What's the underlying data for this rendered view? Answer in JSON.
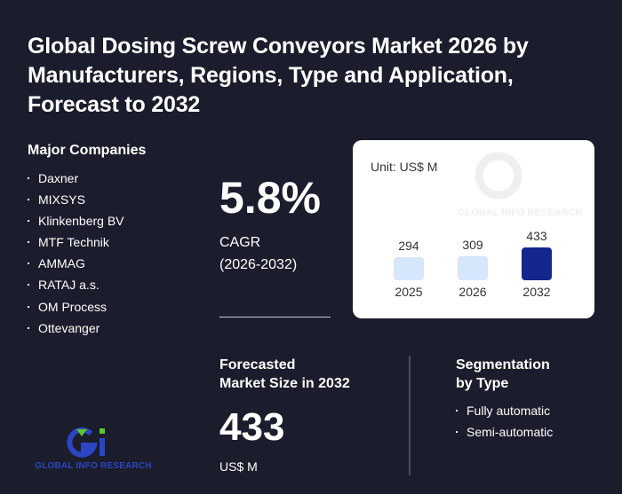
{
  "title": "Global Dosing Screw Conveyors Market 2026 by Manufacturers, Regions, Type and Application, Forecast to 2032",
  "companies": {
    "heading": "Major Companies",
    "items": [
      "Daxner",
      "MIXSYS",
      "Klinkenberg BV",
      "MTF Technik",
      "AMMAG",
      "RATAJ a.s.",
      "OM Process",
      "Ottevanger"
    ]
  },
  "cagr": {
    "value": "5.8%",
    "label": "CAGR",
    "period": "(2026-2032)"
  },
  "forecast": {
    "heading_line1": "Forecasted",
    "heading_line2": "Market Size in 2032",
    "value": "433",
    "unit": "US$ M"
  },
  "segmentation": {
    "heading_line1": "Segmentation",
    "heading_line2": "by Type",
    "items": [
      "Fully automatic",
      "Semi-automatic"
    ]
  },
  "logo": {
    "text": "GLOBAL INFO RESEARCH",
    "watermark_text": "GLOBAL INFO RESEARCH"
  },
  "colors": {
    "background": "#1b1d2c",
    "bar_light": "#d6e6fb",
    "bar_dark": "#13278f",
    "logo_blue": "#2b46c4",
    "logo_green": "#5cc82b"
  },
  "chart_data": {
    "type": "bar",
    "unit_label": "Unit: US$ M",
    "categories": [
      "2025",
      "2026",
      "2032"
    ],
    "values": [
      294,
      309,
      433
    ],
    "value_labels": [
      "294",
      "309",
      "433"
    ]
  }
}
